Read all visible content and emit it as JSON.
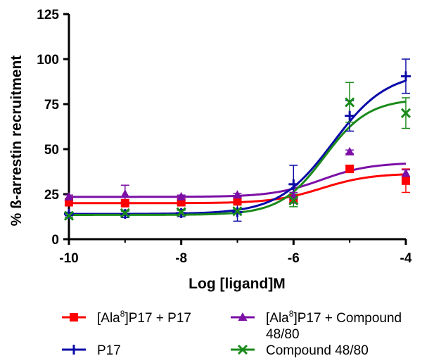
{
  "chart_data": {
    "type": "scatter",
    "xlabel": "Log [ligand]M",
    "ylabel": "% ß-arrestin recruitment",
    "xlim": [
      -10,
      -4
    ],
    "ylim": [
      0,
      125
    ],
    "xticks": [
      -10,
      -8,
      -6,
      -4
    ],
    "yticks": [
      0,
      25,
      50,
      75,
      100,
      125
    ],
    "grid": false,
    "legend_position": "bottom",
    "series": [
      {
        "name_prefix": "[Ala",
        "name_sup": "8",
        "name_suffix": "]P17 + P17",
        "color": "#ff0000",
        "marker": "square",
        "x": [
          -10,
          -9,
          -8,
          -7,
          -6,
          -5,
          -4
        ],
        "y": [
          20.5,
          20,
          20.5,
          21,
          22.5,
          39,
          32.5
        ],
        "err": [
          1,
          1,
          1,
          1,
          2,
          2,
          6.5
        ],
        "fit": {
          "bottom": 20,
          "top": 36.5,
          "logEC50": -5.5,
          "hill": 1
        }
      },
      {
        "name_prefix": "[Ala",
        "name_sup": "8",
        "name_suffix": "]P17 + Compound",
        "name_line2": "48/80",
        "color": "#7b0fa6",
        "marker": "triangle",
        "x": [
          -10,
          -9,
          -8,
          -7,
          -6,
          -5,
          -4
        ],
        "y": [
          23.5,
          25,
          23.5,
          24.5,
          24,
          48.5,
          36.5
        ],
        "err": [
          1,
          5,
          1,
          1,
          2,
          1,
          2
        ],
        "fit": {
          "bottom": 23.5,
          "top": 42.5,
          "logEC50": -5.5,
          "hill": 1
        }
      },
      {
        "name": "P17",
        "color": "#0a0aa8",
        "marker": "plus",
        "x": [
          -10,
          -9,
          -8,
          -7,
          -6,
          -5,
          -4
        ],
        "y": [
          14,
          14,
          14.5,
          15,
          30.5,
          68.5,
          90.5
        ],
        "err": [
          1,
          2,
          2,
          5,
          10.5,
          8.5,
          9.5
        ],
        "fit": {
          "bottom": 14,
          "top": 93,
          "logEC50": -5.3,
          "hill": 0.9
        }
      },
      {
        "name": "Compound 48/80",
        "color": "#1a8a1a",
        "marker": "x",
        "x": [
          -10,
          -9,
          -8,
          -7,
          -6,
          -5,
          -4
        ],
        "y": [
          13,
          14.5,
          15,
          15.5,
          21.5,
          76,
          70
        ],
        "err": [
          1,
          1,
          1,
          1,
          3.5,
          11,
          8.5
        ],
        "fit": {
          "bottom": 13.5,
          "top": 78,
          "logEC50": -5.45,
          "hill": 1.1
        }
      }
    ]
  }
}
